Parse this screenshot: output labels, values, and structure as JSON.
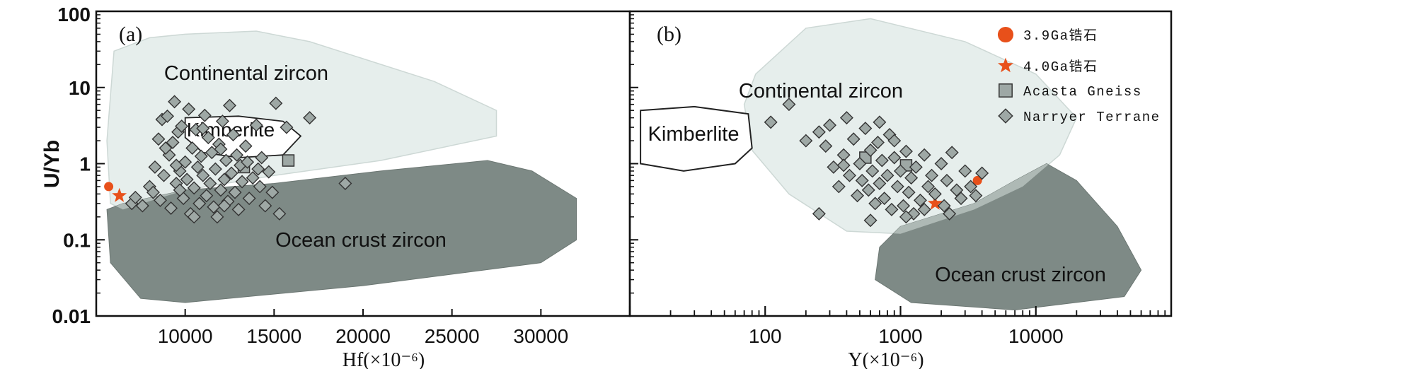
{
  "chart_data": [
    {
      "panel": "(a)",
      "type": "scatter",
      "xlabel": "Hf(×10⁻⁶)",
      "ylabel": "U/Yb",
      "x_scale": "linear",
      "y_scale": "log",
      "xlim": [
        5000,
        35000
      ],
      "ylim": [
        0.01,
        100
      ],
      "x_ticks": [
        10000,
        15000,
        20000,
        25000,
        30000
      ],
      "x_tick_labels": [
        "10000",
        "15000",
        "20000",
        "25000",
        "30000"
      ],
      "y_ticks": [
        0.01,
        0.1,
        1,
        10,
        100
      ],
      "y_tick_labels": [
        "0.01",
        "0.1",
        "1",
        "10",
        "100"
      ],
      "fields": [
        {
          "name": "Continental zircon",
          "label": "Continental zircon",
          "fill": "#e6eeec",
          "outline": [
            [
              6000,
              30
            ],
            [
              8000,
              45
            ],
            [
              10000,
              50
            ],
            [
              14000,
              55
            ],
            [
              17000,
              40
            ],
            [
              24000,
              12
            ],
            [
              27500,
              5
            ],
            [
              27500,
              2.3
            ],
            [
              21000,
              1.1
            ],
            [
              15000,
              0.7
            ],
            [
              10000,
              0.45
            ],
            [
              6500,
              0.25
            ],
            [
              5800,
              0.3
            ],
            [
              5600,
              2
            ]
          ]
        },
        {
          "name": "Kimberlite",
          "label": "Kimberlite",
          "fill": "#ffffff",
          "outline": [
            [
              10000,
              4
            ],
            [
              13000,
              4.2
            ],
            [
              15500,
              3.6
            ],
            [
              16500,
              2.3
            ],
            [
              15500,
              1.3
            ],
            [
              13000,
              1.2
            ],
            [
              11000,
              1.4
            ],
            [
              10000,
              2.2
            ]
          ]
        },
        {
          "name": "Ocean crust zircon",
          "label": "Ocean crust zircon",
          "fill": "#7e8a86",
          "outline": [
            [
              5600,
              0.25
            ],
            [
              6500,
              0.3
            ],
            [
              10000,
              0.45
            ],
            [
              15000,
              0.55
            ],
            [
              21000,
              0.8
            ],
            [
              27000,
              1.1
            ],
            [
              29500,
              0.8
            ],
            [
              32000,
              0.35
            ],
            [
              32000,
              0.1
            ],
            [
              30000,
              0.05
            ],
            [
              20000,
              0.025
            ],
            [
              10000,
              0.015
            ],
            [
              7500,
              0.017
            ],
            [
              5800,
              0.05
            ]
          ]
        }
      ],
      "series": [
        {
          "name": "3.9Ga锆石",
          "marker": "circle",
          "color": "#e8501a",
          "points": [
            [
              5700,
              0.5
            ]
          ]
        },
        {
          "name": "4.0Ga锆石",
          "marker": "star",
          "color": "#e8501a",
          "points": [
            [
              6300,
              0.38
            ]
          ]
        },
        {
          "name": "Acasta Gneiss",
          "marker": "square",
          "color": "#9ea8a5",
          "points": [
            [
              13300,
              0.9
            ],
            [
              15800,
              1.1
            ]
          ]
        },
        {
          "name": "Narryer Terrane",
          "marker": "diamond",
          "color": "#9ea8a5",
          "points": [
            [
              7000,
              0.3
            ],
            [
              7200,
              0.36
            ],
            [
              7600,
              0.28
            ],
            [
              8000,
              0.5
            ],
            [
              8200,
              0.42
            ],
            [
              8300,
              0.9
            ],
            [
              8500,
              2.1
            ],
            [
              8600,
              0.33
            ],
            [
              8700,
              3.8
            ],
            [
              8800,
              0.7
            ],
            [
              9000,
              4.2
            ],
            [
              9100,
              1.3
            ],
            [
              9200,
              0.26
            ],
            [
              9300,
              1.9
            ],
            [
              9400,
              6.5
            ],
            [
              9500,
              0.55
            ],
            [
              9600,
              2.6
            ],
            [
              9700,
              0.8
            ],
            [
              9800,
              3.1
            ],
            [
              9900,
              0.35
            ],
            [
              10000,
              1.05
            ],
            [
              10100,
              0.62
            ],
            [
              10200,
              5.2
            ],
            [
              10300,
              0.22
            ],
            [
              10400,
              1.6
            ],
            [
              10500,
              0.48
            ],
            [
              10600,
              2.8
            ],
            [
              10700,
              0.9
            ],
            [
              10800,
              0.3
            ],
            [
              10900,
              1.25
            ],
            [
              11000,
              0.7
            ],
            [
              11100,
              4.3
            ],
            [
              11200,
              0.38
            ],
            [
              11300,
              2.2
            ],
            [
              11400,
              0.55
            ],
            [
              11500,
              1.4
            ],
            [
              11600,
              0.27
            ],
            [
              11700,
              0.85
            ],
            [
              11800,
              0.2
            ],
            [
              11900,
              1.8
            ],
            [
              12000,
              0.45
            ],
            [
              12100,
              3.6
            ],
            [
              12200,
              0.62
            ],
            [
              12300,
              1.1
            ],
            [
              12400,
              0.32
            ],
            [
              12500,
              5.8
            ],
            [
              12600,
              0.75
            ],
            [
              12700,
              2.4
            ],
            [
              12800,
              0.42
            ],
            [
              12900,
              1.3
            ],
            [
              13000,
              0.25
            ],
            [
              13100,
              0.95
            ],
            [
              13200,
              0.58
            ],
            [
              13400,
              1.7
            ],
            [
              13600,
              0.35
            ],
            [
              13800,
              0.65
            ],
            [
              14000,
              3.2
            ],
            [
              14200,
              0.5
            ],
            [
              14300,
              1.2
            ],
            [
              14500,
              0.28
            ],
            [
              14700,
              0.78
            ],
            [
              14900,
              0.42
            ],
            [
              15100,
              6.2
            ],
            [
              15300,
              0.22
            ],
            [
              15700,
              3.0
            ],
            [
              17000,
              4.0
            ],
            [
              19000,
              0.55
            ],
            [
              9500,
              0.95
            ],
            [
              10500,
              0.2
            ],
            [
              12000,
              1.55
            ],
            [
              13500,
              1.05
            ],
            [
              11000,
              2.9
            ],
            [
              8900,
              1.6
            ],
            [
              9700,
              0.45
            ],
            [
              12200,
              0.28
            ],
            [
              14100,
              0.85
            ]
          ]
        }
      ]
    },
    {
      "panel": "(b)",
      "type": "scatter",
      "xlabel": "Y(×10⁻⁶)",
      "ylabel": "U/Yb",
      "x_scale": "log",
      "y_scale": "log",
      "xlim": [
        10,
        100000
      ],
      "ylim": [
        0.01,
        100
      ],
      "x_ticks": [
        100,
        1000,
        10000
      ],
      "x_tick_labels": [
        "100",
        "1000",
        "10000"
      ],
      "fields": [
        {
          "name": "Continental zircon",
          "label": "Continental zircon",
          "fill": "#e6eeec",
          "outline": [
            [
              85,
              15
            ],
            [
              200,
              60
            ],
            [
              600,
              80
            ],
            [
              3000,
              40
            ],
            [
              10000,
              15
            ],
            [
              20000,
              4
            ],
            [
              15000,
              1.3
            ],
            [
              8000,
              0.5
            ],
            [
              3500,
              0.25
            ],
            [
              1000,
              0.12
            ],
            [
              400,
              0.13
            ],
            [
              150,
              0.4
            ],
            [
              80,
              1.5
            ],
            [
              70,
              6
            ]
          ]
        },
        {
          "name": "Kimberlite",
          "label": "Kimberlite",
          "fill": "#ffffff",
          "outline": [
            [
              12,
              5
            ],
            [
              30,
              5.6
            ],
            [
              75,
              4.5
            ],
            [
              80,
              1.6
            ],
            [
              60,
              1.0
            ],
            [
              25,
              0.8
            ],
            [
              12,
              1.0
            ]
          ]
        },
        {
          "name": "Ocean crust zircon",
          "label": "Ocean crust zircon",
          "fill": "#7e8a86",
          "outline": [
            [
              1000,
              0.15
            ],
            [
              3500,
              0.3
            ],
            [
              7000,
              0.6
            ],
            [
              12000,
              1.0
            ],
            [
              20000,
              0.6
            ],
            [
              40000,
              0.15
            ],
            [
              60000,
              0.04
            ],
            [
              45000,
              0.018
            ],
            [
              7000,
              0.012
            ],
            [
              1200,
              0.015
            ],
            [
              650,
              0.03
            ],
            [
              700,
              0.08
            ]
          ]
        }
      ],
      "series": [
        {
          "name": "3.9Ga锆石",
          "marker": "circle",
          "color": "#e8501a",
          "points": [
            [
              3700,
              0.6
            ]
          ]
        },
        {
          "name": "4.0Ga锆石",
          "marker": "star",
          "color": "#e8501a",
          "points": [
            [
              1800,
              0.3
            ]
          ]
        },
        {
          "name": "Acasta Gneiss",
          "marker": "square",
          "color": "#9ea8a5",
          "points": [
            [
              550,
              1.2
            ],
            [
              1100,
              0.95
            ]
          ]
        },
        {
          "name": "Narryer Terrane",
          "marker": "diamond",
          "color": "#9ea8a5",
          "points": [
            [
              110,
              3.5
            ],
            [
              150,
              6.0
            ],
            [
              200,
              2.0
            ],
            [
              250,
              2.6
            ],
            [
              280,
              1.7
            ],
            [
              300,
              3.2
            ],
            [
              320,
              0.9
            ],
            [
              350,
              0.5
            ],
            [
              380,
              1.3
            ],
            [
              400,
              4.0
            ],
            [
              420,
              0.7
            ],
            [
              450,
              2.1
            ],
            [
              480,
              0.38
            ],
            [
              500,
              1.0
            ],
            [
              520,
              0.6
            ],
            [
              550,
              2.9
            ],
            [
              580,
              0.45
            ],
            [
              600,
              1.5
            ],
            [
              620,
              0.8
            ],
            [
              650,
              0.3
            ],
            [
              680,
              1.9
            ],
            [
              700,
              0.55
            ],
            [
              730,
              1.1
            ],
            [
              760,
              0.35
            ],
            [
              800,
              0.7
            ],
            [
              830,
              2.4
            ],
            [
              860,
              0.25
            ],
            [
              900,
              1.2
            ],
            [
              950,
              0.5
            ],
            [
              1000,
              0.8
            ],
            [
              1050,
              0.28
            ],
            [
              1100,
              1.45
            ],
            [
              1150,
              0.42
            ],
            [
              1200,
              0.65
            ],
            [
              1250,
              0.22
            ],
            [
              1300,
              0.9
            ],
            [
              1400,
              0.33
            ],
            [
              1500,
              1.3
            ],
            [
              1600,
              0.5
            ],
            [
              1700,
              0.7
            ],
            [
              1800,
              0.4
            ],
            [
              2000,
              1.0
            ],
            [
              2100,
              0.28
            ],
            [
              2200,
              0.6
            ],
            [
              2400,
              1.4
            ],
            [
              2600,
              0.45
            ],
            [
              2800,
              0.35
            ],
            [
              3000,
              0.8
            ],
            [
              3300,
              0.5
            ],
            [
              3600,
              0.38
            ],
            [
              4000,
              0.75
            ],
            [
              250,
              0.22
            ],
            [
              600,
              0.18
            ],
            [
              900,
              2.0
            ],
            [
              1100,
              0.2
            ],
            [
              380,
              0.95
            ],
            [
              700,
              3.5
            ],
            [
              1500,
              0.25
            ],
            [
              2300,
              0.22
            ]
          ]
        }
      ]
    }
  ],
  "legend": [
    {
      "label": "3.9Ga锆石",
      "marker": "circle"
    },
    {
      "label": "4.0Ga锆石",
      "marker": "star"
    },
    {
      "label": "Acasta Gneiss",
      "marker": "square"
    },
    {
      "label": "Narryer Terrane",
      "marker": "diamond"
    }
  ],
  "colors": {
    "continental": "#e6eeec",
    "continental_edge": "#cdd8d5",
    "ocean": "#7e8a86",
    "overlap": "#aeb9b5",
    "marker_fill": "#9ea8a5",
    "marker_edge": "#333333",
    "highlight": "#e8501a"
  }
}
